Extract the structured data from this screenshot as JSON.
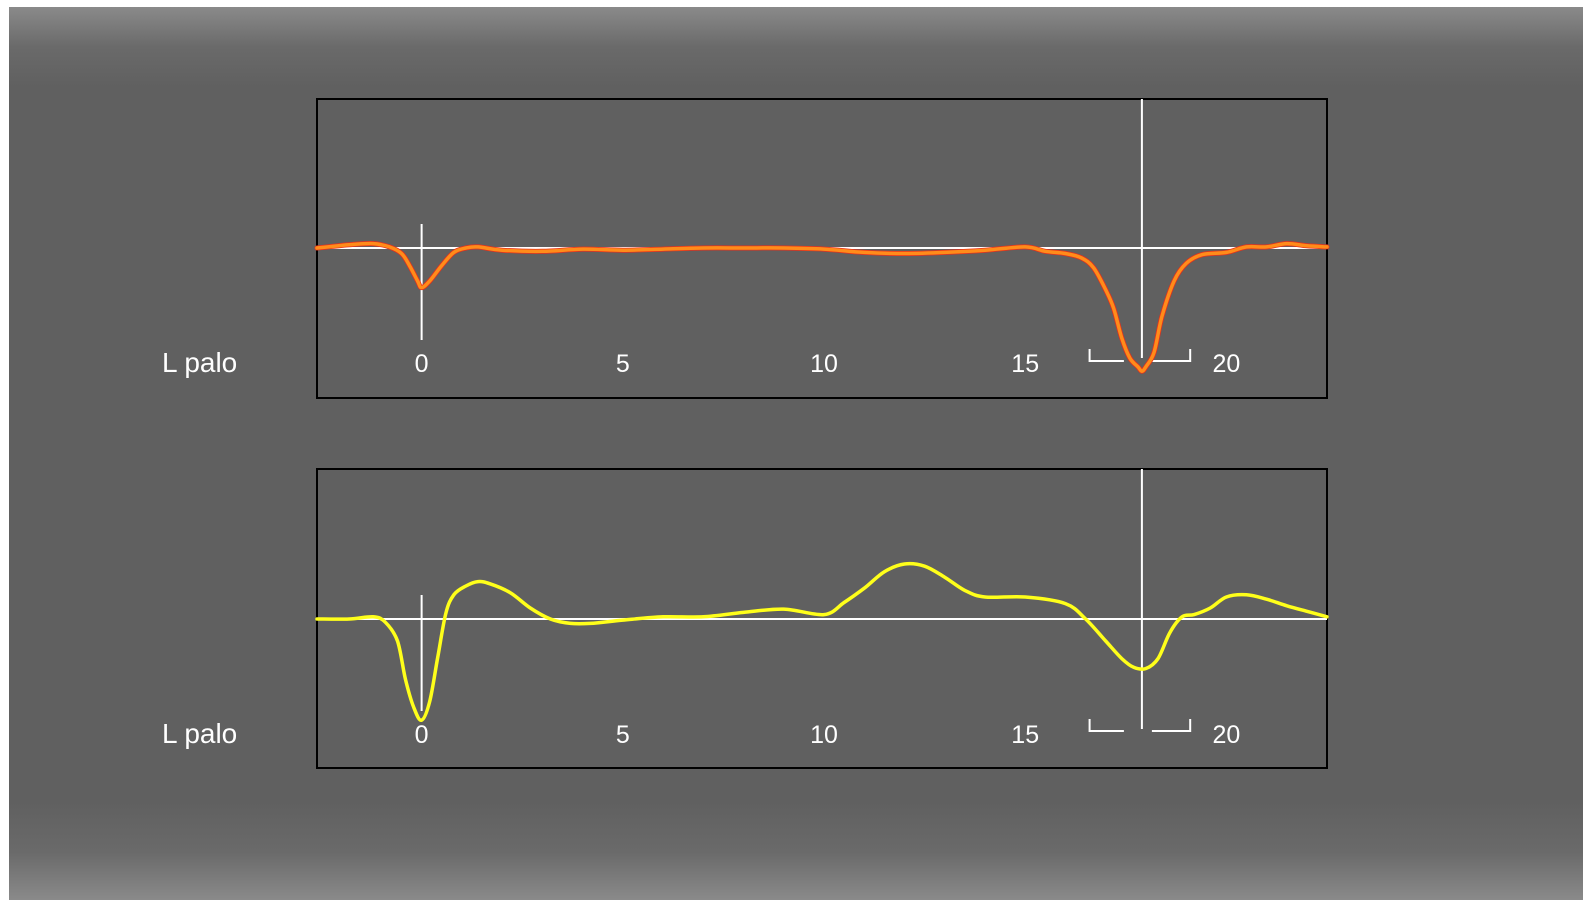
{
  "colors": {
    "background": "#606060",
    "frame": "#000000",
    "axis": "#ffffff",
    "trace_top": "#ff8c1a",
    "trace_top_edge": "#e8301a",
    "trace_bottom": "#ffff1a"
  },
  "chart_data": [
    {
      "type": "line",
      "label": "L palo",
      "xlim": [
        -2.6,
        22.5
      ],
      "ylim": [
        -1.2,
        1.0
      ],
      "grid": false,
      "xticks": [
        0,
        5,
        10,
        15,
        20
      ],
      "tick_labels": [
        "0",
        "5",
        "10",
        "15",
        "20"
      ],
      "zero_marker_x": 0,
      "cursor_x": 17.9,
      "bracket_x": [
        16.6,
        19.1
      ],
      "series": [
        {
          "color": "#ff8c1a",
          "x": [
            -2.6,
            -1.8,
            -1.2,
            -0.8,
            -0.5,
            -0.3,
            -0.1,
            0.0,
            0.2,
            0.5,
            0.8,
            1.1,
            1.4,
            2,
            3,
            4,
            5,
            6,
            7,
            8,
            9,
            10,
            11,
            12,
            13,
            14,
            15,
            15.5,
            16,
            16.4,
            16.7,
            17.0,
            17.2,
            17.4,
            17.6,
            17.8,
            17.9,
            18.0,
            18.2,
            18.4,
            18.7,
            19.0,
            19.4,
            20,
            20.5,
            21,
            21.5,
            22,
            22.5
          ],
          "y": [
            0,
            0.03,
            0.04,
            0.01,
            -0.05,
            -0.16,
            -0.3,
            -0.36,
            -0.3,
            -0.16,
            -0.04,
            0.0,
            0.01,
            -0.02,
            -0.03,
            -0.01,
            -0.02,
            -0.01,
            0,
            0,
            0,
            -0.01,
            -0.04,
            -0.05,
            -0.04,
            -0.02,
            0.01,
            -0.03,
            -0.05,
            -0.09,
            -0.18,
            -0.38,
            -0.55,
            -0.82,
            -1.0,
            -1.08,
            -1.12,
            -1.08,
            -0.95,
            -0.62,
            -0.3,
            -0.14,
            -0.06,
            -0.04,
            0.01,
            0.01,
            0.04,
            0.02,
            0.01
          ]
        }
      ]
    },
    {
      "type": "line",
      "label": "L palo",
      "xlim": [
        -2.6,
        22.5
      ],
      "ylim": [
        -1.2,
        1.0
      ],
      "grid": false,
      "xticks": [
        0,
        5,
        10,
        15,
        20
      ],
      "tick_labels": [
        "0",
        "5",
        "10",
        "15",
        "20"
      ],
      "zero_marker_x": 0,
      "cursor_x": 17.9,
      "bracket_x": [
        16.6,
        19.1
      ],
      "series": [
        {
          "color": "#ffff1a",
          "x": [
            -2.6,
            -1.8,
            -1.2,
            -0.9,
            -0.6,
            -0.4,
            -0.2,
            0.0,
            0.2,
            0.4,
            0.6,
            0.8,
            1.1,
            1.4,
            1.7,
            2.2,
            2.7,
            3.2,
            3.7,
            4.2,
            5,
            6,
            7,
            8,
            9,
            10,
            10.5,
            11,
            11.5,
            12,
            12.5,
            13,
            13.5,
            14,
            15,
            16,
            16.5,
            17,
            17.4,
            17.7,
            18.0,
            18.3,
            18.6,
            18.9,
            19.2,
            19.6,
            20,
            20.5,
            21,
            21.5,
            22,
            22.5
          ],
          "y": [
            0,
            0.0,
            0.02,
            -0.03,
            -0.2,
            -0.55,
            -0.8,
            -0.92,
            -0.75,
            -0.35,
            0.05,
            0.22,
            0.3,
            0.34,
            0.32,
            0.24,
            0.1,
            0.0,
            -0.04,
            -0.04,
            -0.01,
            0.02,
            0.02,
            0.06,
            0.09,
            0.04,
            0.15,
            0.28,
            0.43,
            0.5,
            0.48,
            0.38,
            0.26,
            0.2,
            0.2,
            0.14,
            0.0,
            -0.2,
            -0.36,
            -0.44,
            -0.45,
            -0.36,
            -0.12,
            0.02,
            0.04,
            0.1,
            0.2,
            0.22,
            0.18,
            0.12,
            0.07,
            0.02
          ]
        }
      ]
    }
  ]
}
